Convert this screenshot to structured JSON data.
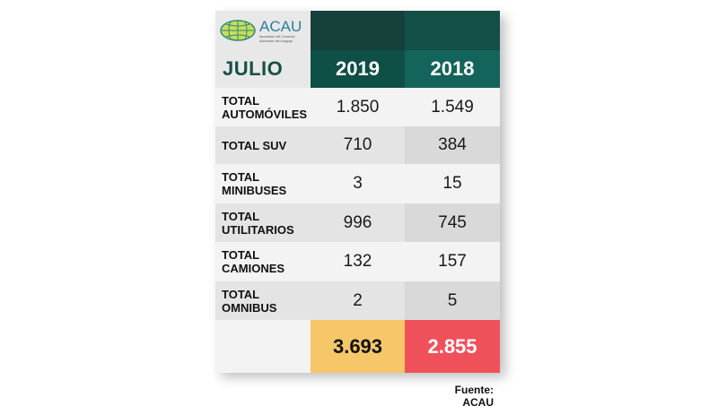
{
  "header": {
    "logo_name": "ACAU",
    "logo_subtitle_line1": "Asociación del Comercio",
    "logo_subtitle_line2": "Automotor del Uruguay",
    "month": "JULIO",
    "years": [
      "2019",
      "2018"
    ]
  },
  "rows": [
    {
      "label_line1": "TOTAL",
      "label_line2": "AUTOMÓVILES",
      "v2019": "1.850",
      "v2018": "1.549"
    },
    {
      "label_line1": "TOTAL SUV",
      "label_line2": "",
      "v2019": "710",
      "v2018": "384"
    },
    {
      "label_line1": "TOTAL",
      "label_line2": "MINIBUSES",
      "v2019": "3",
      "v2018": "15"
    },
    {
      "label_line1": "TOTAL",
      "label_line2": "UTILITARIOS",
      "v2019": "996",
      "v2018": "745"
    },
    {
      "label_line1": "TOTAL",
      "label_line2": "CAMIONES",
      "v2019": "132",
      "v2018": "157"
    },
    {
      "label_line1": "TOTAL",
      "label_line2": "OMNIBUS",
      "v2019": "2",
      "v2018": "5"
    }
  ],
  "totals": {
    "v2019": "3.693",
    "v2018": "2.855"
  },
  "source": "Fuente: ACAU",
  "colors": {
    "teal_dark": "#0e4f46",
    "teal_light": "#13645a",
    "total_2019": "#f6c768",
    "total_2018": "#f0505a"
  },
  "icons": {
    "logo": "globe-icon"
  }
}
